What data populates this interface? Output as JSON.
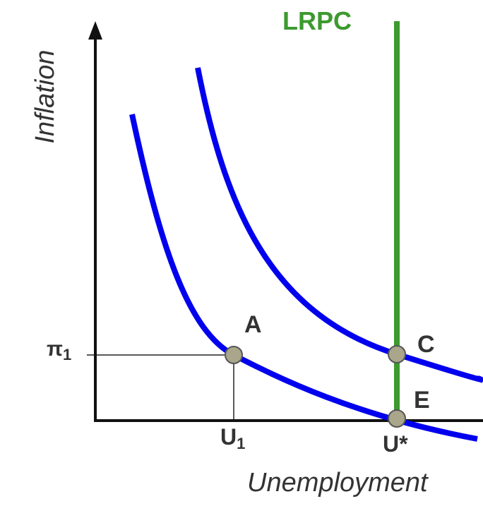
{
  "axes": {
    "y_label": "Inflation",
    "x_label": "Unemployment"
  },
  "curves": {
    "lrpc_label": "LRPC"
  },
  "points": {
    "a_label": "A",
    "c_label": "C",
    "e_label": "E"
  },
  "ticks": {
    "pi_symbol": "π",
    "pi_subscript": "1",
    "u1_letter": "U",
    "u1_subscript": "1",
    "ustar_label": "U*"
  },
  "colors": {
    "phillips_curve": "#0000ee",
    "lrpc": "#3c9a2e",
    "point_fill": "#a9a68c",
    "axis": "#111111"
  }
}
